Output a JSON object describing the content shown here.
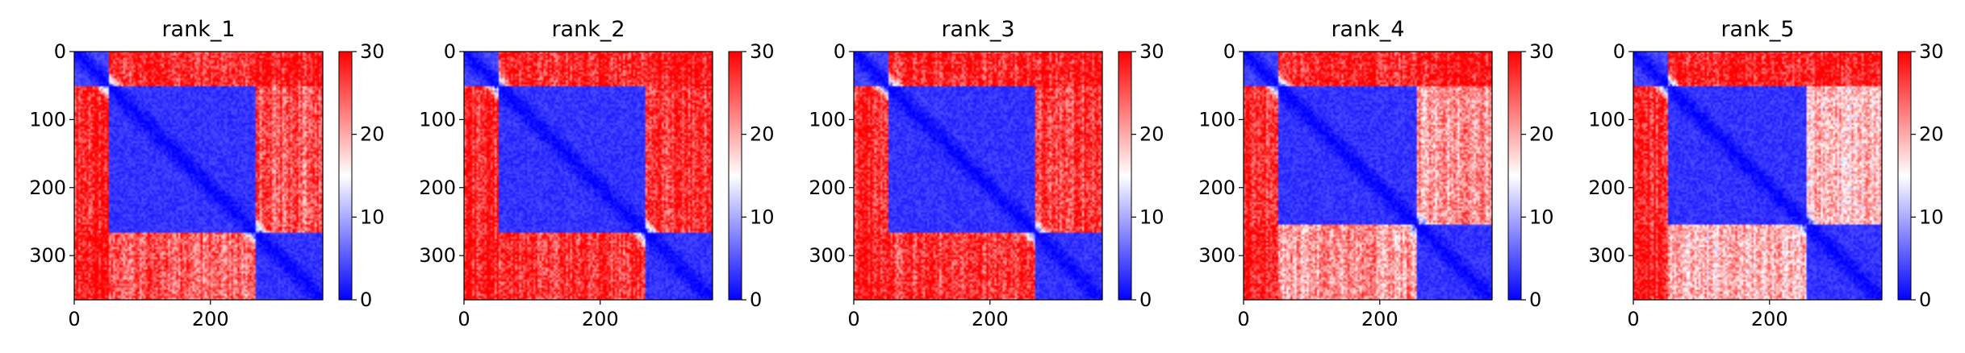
{
  "figure": {
    "panel_count": 5,
    "background": "#ffffff"
  },
  "colormap": {
    "name": "bwr",
    "low": "#0000ff",
    "mid": "#ffffff",
    "high": "#ff0000"
  },
  "chart_data": [
    {
      "type": "heatmap",
      "title": "rank_1",
      "xlabel": "",
      "ylabel": "",
      "xlim": [
        0,
        365
      ],
      "ylim": [
        365,
        0
      ],
      "xticks": [
        0,
        200
      ],
      "xtick_labels": [
        "0",
        "200"
      ],
      "yticks": [
        0,
        100,
        200,
        300
      ],
      "ytick_labels": [
        "0",
        "100",
        "200",
        "300"
      ],
      "colorbar": {
        "range": [
          0,
          30
        ],
        "ticks": [
          0,
          10,
          20,
          30
        ],
        "tick_labels": [
          "0",
          "10",
          "20",
          "30"
        ]
      },
      "domains": [
        [
          0,
          50
        ],
        [
          50,
          265
        ],
        [
          265,
          365
        ]
      ],
      "block_values": [
        [
          4,
          28,
          29
        ],
        [
          28,
          3,
          25
        ],
        [
          29,
          25,
          3
        ]
      ]
    },
    {
      "type": "heatmap",
      "title": "rank_2",
      "xlabel": "",
      "ylabel": "",
      "xlim": [
        0,
        365
      ],
      "ylim": [
        365,
        0
      ],
      "xticks": [
        0,
        200
      ],
      "xtick_labels": [
        "0",
        "200"
      ],
      "yticks": [
        0,
        100,
        200,
        300
      ],
      "ytick_labels": [
        "0",
        "100",
        "200",
        "300"
      ],
      "colorbar": {
        "range": [
          0,
          30
        ],
        "ticks": [
          0,
          10,
          20,
          30
        ],
        "tick_labels": [
          "0",
          "10",
          "20",
          "30"
        ]
      },
      "domains": [
        [
          0,
          50
        ],
        [
          50,
          265
        ],
        [
          265,
          365
        ]
      ],
      "block_values": [
        [
          4,
          28,
          29
        ],
        [
          28,
          3,
          27
        ],
        [
          29,
          27,
          3
        ]
      ]
    },
    {
      "type": "heatmap",
      "title": "rank_3",
      "xlabel": "",
      "ylabel": "",
      "xlim": [
        0,
        365
      ],
      "ylim": [
        365,
        0
      ],
      "xticks": [
        0,
        200
      ],
      "xtick_labels": [
        "0",
        "200"
      ],
      "yticks": [
        0,
        100,
        200,
        300
      ],
      "ytick_labels": [
        "0",
        "100",
        "200",
        "300"
      ],
      "colorbar": {
        "range": [
          0,
          30
        ],
        "ticks": [
          0,
          10,
          20,
          30
        ],
        "tick_labels": [
          "0",
          "10",
          "20",
          "30"
        ]
      },
      "domains": [
        [
          0,
          50
        ],
        [
          50,
          265
        ],
        [
          265,
          365
        ]
      ],
      "block_values": [
        [
          4,
          28,
          29
        ],
        [
          28,
          3,
          27
        ],
        [
          29,
          27,
          3
        ]
      ]
    },
    {
      "type": "heatmap",
      "title": "rank_4",
      "xlabel": "",
      "ylabel": "",
      "xlim": [
        0,
        365
      ],
      "ylim": [
        365,
        0
      ],
      "xticks": [
        0,
        200
      ],
      "xtick_labels": [
        "0",
        "200"
      ],
      "yticks": [
        0,
        100,
        200,
        300
      ],
      "ytick_labels": [
        "0",
        "100",
        "200",
        "300"
      ],
      "colorbar": {
        "range": [
          0,
          30
        ],
        "ticks": [
          0,
          10,
          20,
          30
        ],
        "tick_labels": [
          "0",
          "10",
          "20",
          "30"
        ]
      },
      "domains": [
        [
          0,
          50
        ],
        [
          50,
          255
        ],
        [
          255,
          365
        ]
      ],
      "block_values": [
        [
          4,
          28,
          29
        ],
        [
          28,
          3,
          21
        ],
        [
          29,
          21,
          3
        ]
      ]
    },
    {
      "type": "heatmap",
      "title": "rank_5",
      "xlabel": "",
      "ylabel": "",
      "xlim": [
        0,
        365
      ],
      "ylim": [
        365,
        0
      ],
      "xticks": [
        0,
        200
      ],
      "xtick_labels": [
        "0",
        "200"
      ],
      "yticks": [
        0,
        100,
        200,
        300
      ],
      "ytick_labels": [
        "0",
        "100",
        "200",
        "300"
      ],
      "colorbar": {
        "range": [
          0,
          30
        ],
        "ticks": [
          0,
          10,
          20,
          30
        ],
        "tick_labels": [
          "0",
          "10",
          "20",
          "30"
        ]
      },
      "domains": [
        [
          0,
          50
        ],
        [
          50,
          255
        ],
        [
          255,
          365
        ]
      ],
      "block_values": [
        [
          4,
          28,
          29
        ],
        [
          28,
          3,
          19
        ],
        [
          29,
          19,
          3
        ]
      ]
    }
  ]
}
